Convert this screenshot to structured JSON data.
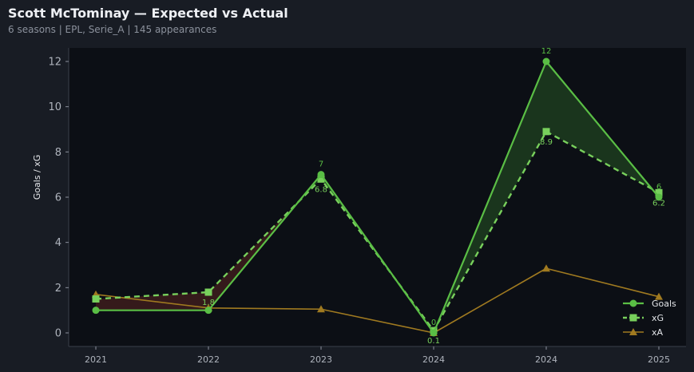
{
  "header": {
    "title": "Scott McTominay — Expected vs Actual",
    "subtitle": "6 seasons | EPL, Serie_A | 145 appearances"
  },
  "colors": {
    "background": "#181c24",
    "plot_bg": "#0c0f15",
    "goals": "#5abe45",
    "xg": "#78d05c",
    "xa": "#a07a20",
    "over_fill": "#1c3a1e",
    "under_fill": "#3a1c1c"
  },
  "chart_data": {
    "type": "line",
    "title": "Scott McTominay — Expected vs Actual",
    "subtitle": "6 seasons | EPL, Serie_A | 145 appearances",
    "xlabel": "",
    "ylabel": "Goals / xG",
    "categories": [
      "2021",
      "2022",
      "2023",
      "2024",
      "2024",
      "2025"
    ],
    "ylim": [
      -0.6,
      12.6
    ],
    "yticks": [
      0,
      2,
      4,
      6,
      8,
      10,
      12
    ],
    "grid": false,
    "legend": "bottom-right",
    "series": [
      {
        "name": "Goals",
        "values": [
          1,
          1,
          7,
          0,
          12,
          6
        ],
        "labels": [
          "",
          "",
          "7",
          "0",
          "12",
          "6"
        ],
        "marker": "circle",
        "style": "solid"
      },
      {
        "name": "xG",
        "values": [
          1.5,
          1.8,
          6.8,
          0.1,
          8.9,
          6.2
        ],
        "labels": [
          "",
          "1.8",
          "6.8",
          "0.1",
          "8.9",
          "6.2"
        ],
        "marker": "square",
        "style": "dashed"
      },
      {
        "name": "xA",
        "values": [
          1.7,
          1.1,
          1.05,
          0.0,
          2.85,
          1.6
        ],
        "marker": "triangle",
        "style": "solid"
      }
    ]
  }
}
